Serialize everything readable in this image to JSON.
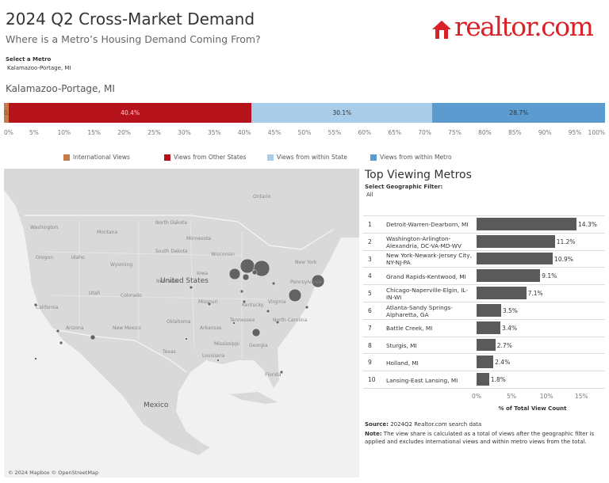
{
  "header": {
    "title": "2024 Q2 Cross-Market Demand",
    "subtitle": "Where is a Metro’s Housing Demand Coming From?",
    "logo": "realtor.com"
  },
  "metro_filter": {
    "label": "Select a Metro",
    "value": "Kalamazoo-Portage, MI"
  },
  "chart_data": [
    {
      "type": "stacked_bar",
      "title": "Kalamazoo-Portage, MI",
      "series": [
        {
          "name": "International Views",
          "color": "#c8794a",
          "values": [
            0.8
          ],
          "value_labels": [
            "0.8%"
          ]
        },
        {
          "name": "Views from Other States",
          "color": "#b5121b",
          "values": [
            40.4
          ],
          "value_labels": [
            "40.4%"
          ]
        },
        {
          "name": "Views from within State",
          "color": "#a9cde9",
          "values": [
            30.1
          ],
          "value_labels": [
            "30.1%"
          ]
        },
        {
          "name": "Views from within Metro",
          "color": "#5b9bcf",
          "values": [
            28.7
          ],
          "value_labels": [
            "28.7%"
          ]
        }
      ],
      "xlim": [
        0,
        100
      ],
      "xticks": [
        {
          "value": 0,
          "label": "0%"
        },
        {
          "value": 5,
          "label": "5%"
        },
        {
          "value": 10,
          "label": "10%"
        },
        {
          "value": 15,
          "label": "15%"
        },
        {
          "value": 20,
          "label": "20%"
        },
        {
          "value": 25,
          "label": "25%"
        },
        {
          "value": 30,
          "label": "30%"
        },
        {
          "value": 35,
          "label": "35%"
        },
        {
          "value": 40,
          "label": "40%"
        },
        {
          "value": 45,
          "label": "45%"
        },
        {
          "value": 50,
          "label": "50%"
        },
        {
          "value": 55,
          "label": "55%"
        },
        {
          "value": 60,
          "label": "60%"
        },
        {
          "value": 65,
          "label": "65%"
        },
        {
          "value": 70,
          "label": "70%"
        },
        {
          "value": 75,
          "label": "75%"
        },
        {
          "value": 80,
          "label": "80%"
        },
        {
          "value": 85,
          "label": "85%"
        },
        {
          "value": 90,
          "label": "90%"
        },
        {
          "value": 95,
          "label": "95%"
        },
        {
          "value": 100,
          "label": "100%"
        }
      ]
    },
    {
      "type": "bar",
      "orientation": "horizontal",
      "title": "Top Viewing Metros",
      "filter_label": "Select Geographic Filter:",
      "filter_value": "All",
      "ranks": [
        1,
        2,
        3,
        4,
        5,
        6,
        7,
        8,
        9,
        10
      ],
      "categories": [
        "Detroit-Warren-Dearborn, MI",
        "Washington-Arlington-Alexandria, DC-VA-MD-WV",
        "New York-Newark-Jersey City, NY-NJ-PA",
        "Grand Rapids-Kentwood, MI",
        "Chicago-Naperville-Elgin, IL-IN-WI",
        "Atlanta-Sandy Springs-Alpharetta, GA",
        "Battle Creek, MI",
        "Sturgis, MI",
        "Holland, MI",
        "Lansing-East Lansing, MI"
      ],
      "values": [
        14.3,
        11.2,
        10.9,
        9.1,
        7.1,
        3.5,
        3.4,
        2.7,
        2.4,
        1.8
      ],
      "value_labels": [
        "14.3%",
        "11.2%",
        "10.9%",
        "9.1%",
        "7.1%",
        "3.5%",
        "3.4%",
        "2.7%",
        "2.4%",
        "1.8%"
      ],
      "color": "#5a5a5a",
      "xlim": [
        0,
        16
      ],
      "xticks": [
        {
          "value": 0,
          "label": "0%"
        },
        {
          "value": 5,
          "label": "5%"
        },
        {
          "value": 10,
          "label": "10%"
        },
        {
          "value": 15,
          "label": "15%"
        }
      ],
      "xlabel": "% of Total View Count"
    }
  ],
  "map": {
    "labels": [
      "Ontario",
      "North Dakota",
      "Montana",
      "Washington",
      "Oregon",
      "Idaho",
      "Wyoming",
      "South Dakota",
      "Minnesota",
      "Wisconsin",
      "Iowa",
      "Nebraska",
      "Utah",
      "Colorado",
      "United States",
      "Missouri",
      "California",
      "Arizona",
      "New Mexico",
      "Oklahoma",
      "Texas",
      "Arkansas",
      "Tennessee",
      "Kentucky",
      "Virginia",
      "North Carolina",
      "Mississippi",
      "Louisiana",
      "Georgia",
      "Florida",
      "Mexico",
      "New York",
      "Pennsylvania"
    ],
    "attribution": "© 2024 Mapbox © OpenStreetMap"
  },
  "footer": {
    "source_label": "Source:",
    "source": "2024Q2 Realtor.com search data",
    "note_label": "Note:",
    "note": "The view share is calculated as a total of views after the geographic filter is applied and excludes international views and within metro views from the total."
  }
}
